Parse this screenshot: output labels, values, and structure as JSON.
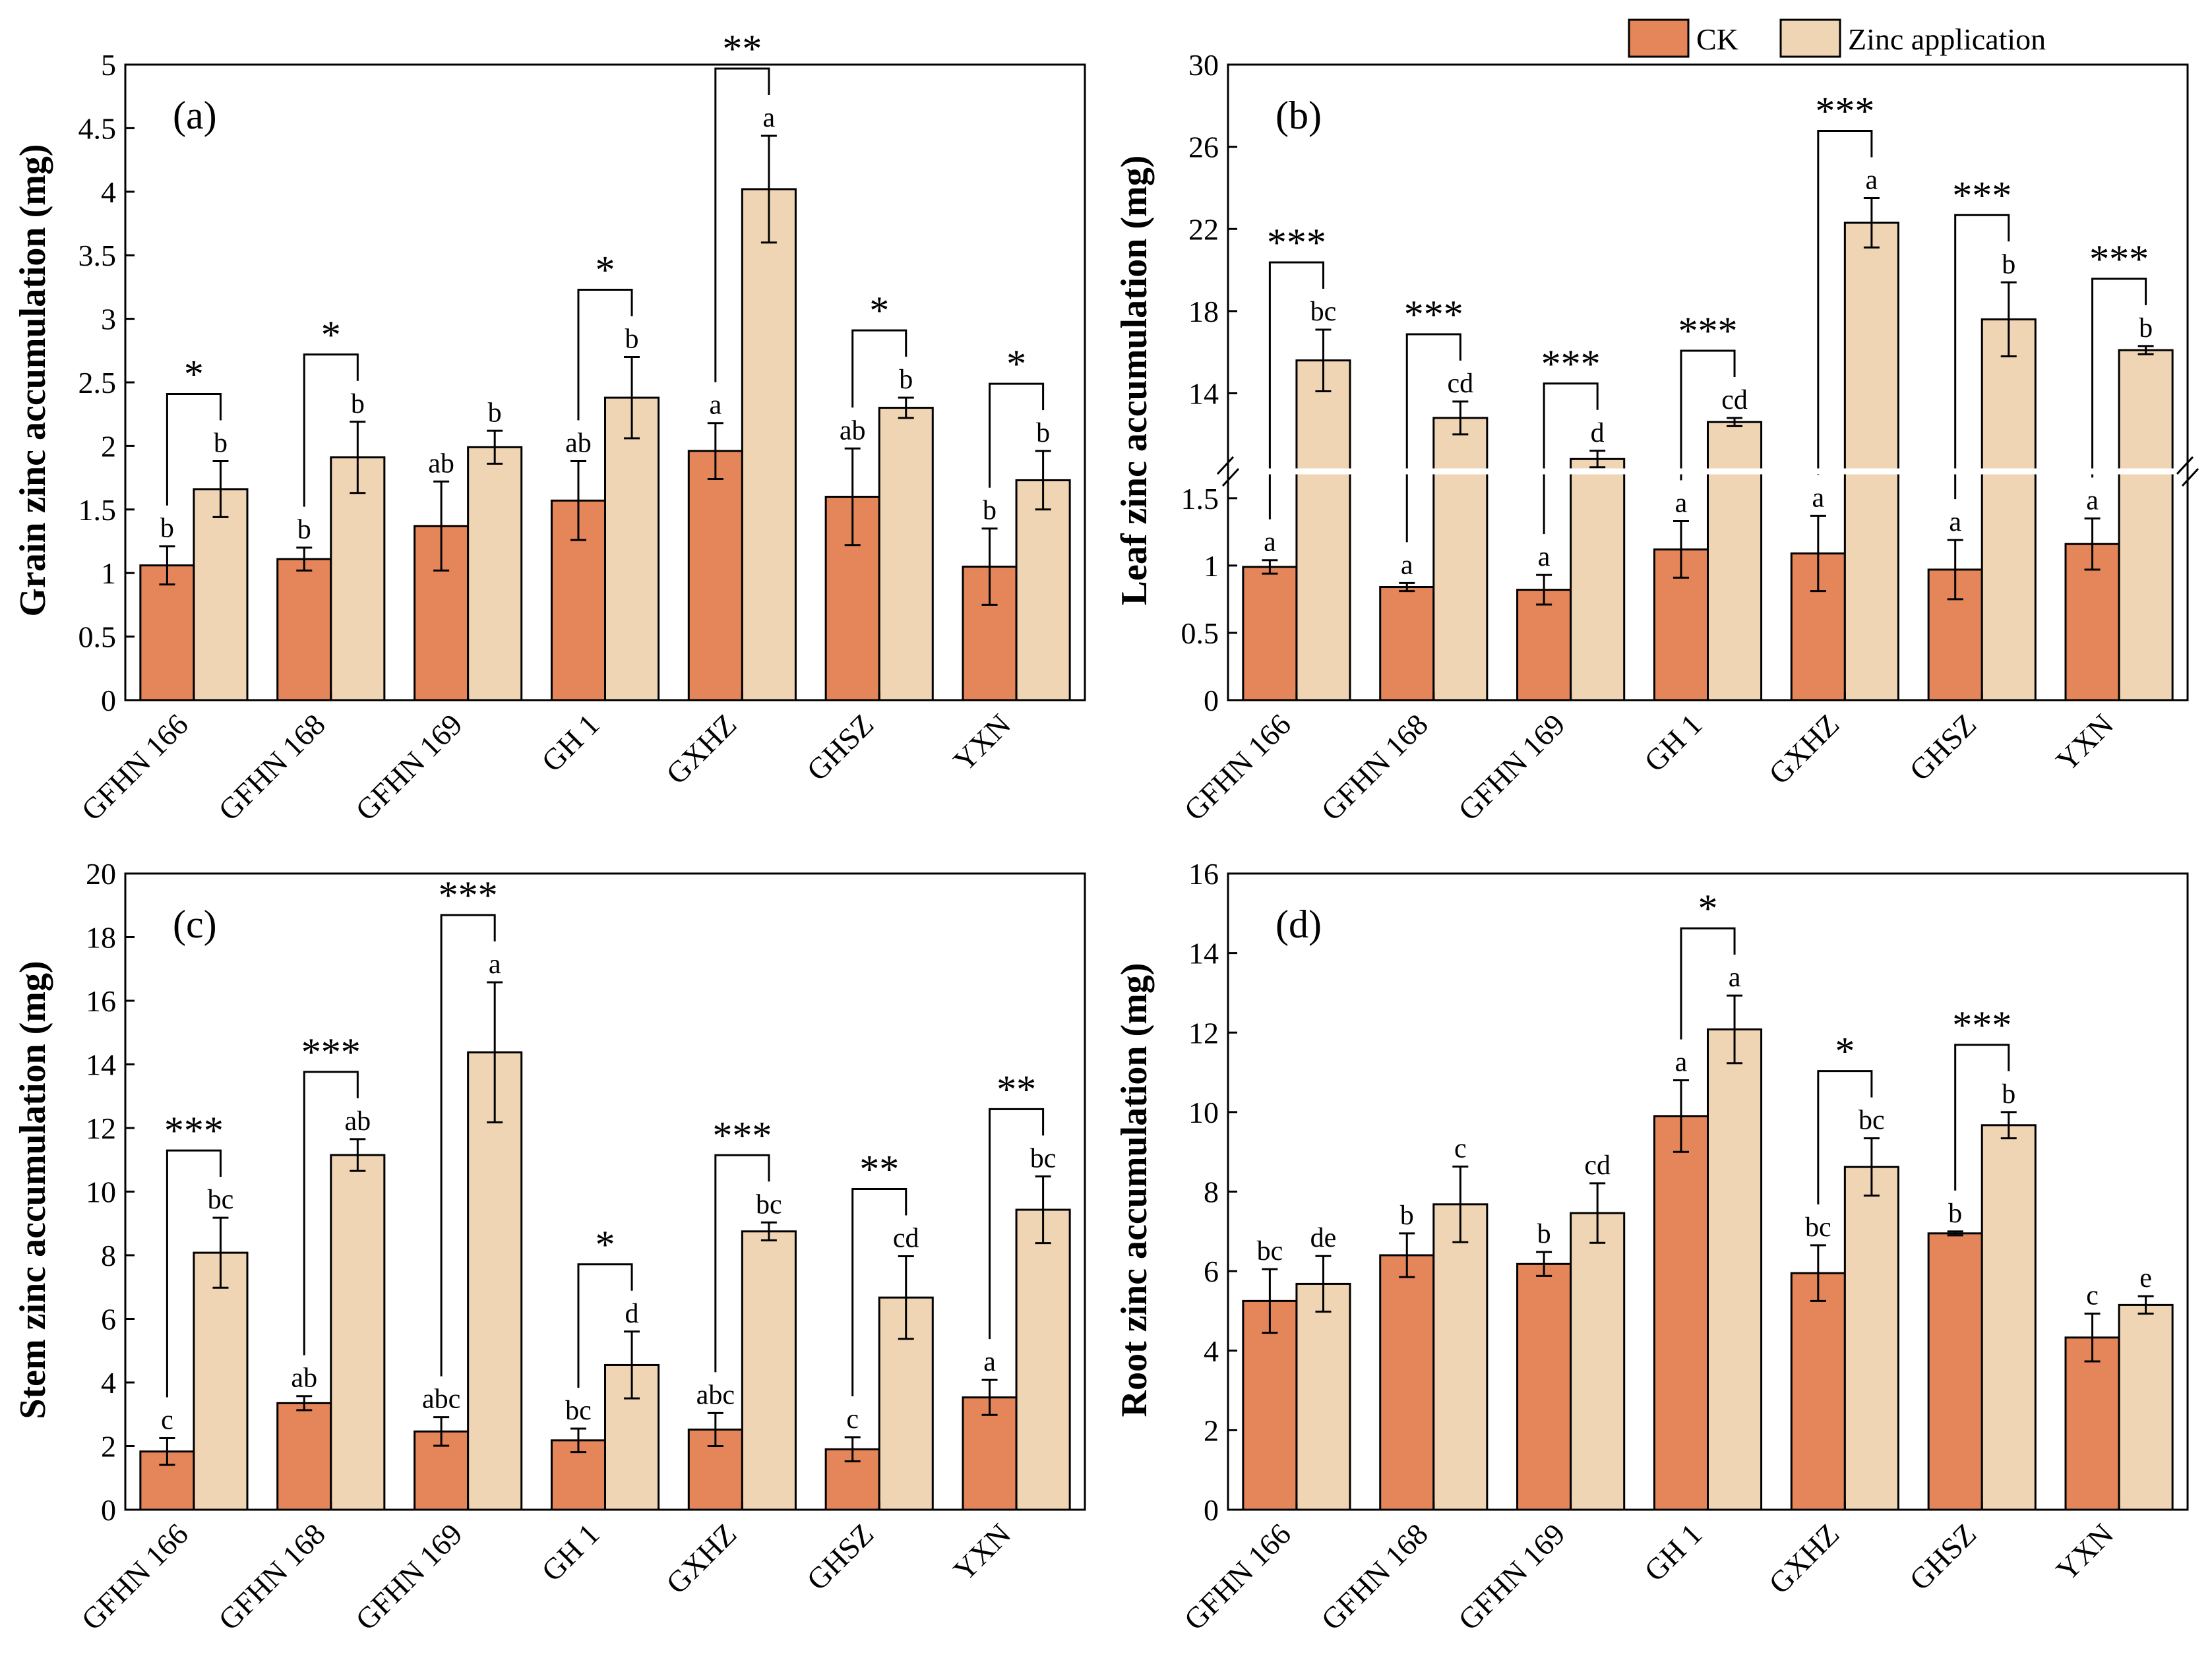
{
  "legend": {
    "ck_label": "CK",
    "zinc_label": "Zinc application",
    "ck_color": "#E4855A",
    "zinc_color": "#F0D5B5"
  },
  "chart_data": [
    {
      "type": "bar",
      "panel_label": "(a)",
      "ylabel": "Grain zinc accumulation (mg)",
      "ylim": [
        0,
        5
      ],
      "yticks": [
        0,
        0.5,
        1,
        1.5,
        2,
        2.5,
        3,
        3.5,
        4,
        4.5,
        5
      ],
      "ytick_labels": [
        "0",
        "0.5",
        "1",
        "1.5",
        "2",
        "2.5",
        "3",
        "3.5",
        "4",
        "4.5",
        "5"
      ],
      "categories": [
        "GFHN 166",
        "GFHN 168",
        "GFHN 169",
        "GH 1",
        "GXHZ",
        "GHSZ",
        "YXN"
      ],
      "series": [
        {
          "name": "CK",
          "values": [
            1.06,
            1.11,
            1.37,
            1.57,
            1.96,
            1.6,
            1.05
          ],
          "errors": [
            0.15,
            0.09,
            0.35,
            0.31,
            0.22,
            0.38,
            0.3
          ],
          "letters": [
            "b",
            "b",
            "ab",
            "ab",
            "a",
            "ab",
            "b"
          ]
        },
        {
          "name": "Zinc application",
          "values": [
            1.66,
            1.91,
            1.99,
            2.38,
            4.02,
            2.3,
            1.73
          ],
          "errors": [
            0.22,
            0.28,
            0.13,
            0.32,
            0.42,
            0.08,
            0.23
          ],
          "letters": [
            "b",
            "b",
            "b",
            "b",
            "a",
            "b",
            "b"
          ]
        }
      ],
      "significance": [
        "*",
        "*",
        "",
        "*",
        "**",
        "*",
        "*"
      ]
    },
    {
      "type": "bar",
      "panel_label": "(b)",
      "ylabel": "Leaf zinc accumulation (mg)",
      "broken_axis": true,
      "ylim_lower": [
        0,
        1.7
      ],
      "ylim_upper": [
        10.2,
        30
      ],
      "yticks": [
        0,
        0.5,
        1,
        1.5,
        14,
        18,
        22,
        26,
        30
      ],
      "ytick_labels": [
        "0",
        "0.5",
        "1",
        "1.5",
        "14",
        "18",
        "22",
        "26",
        "30"
      ],
      "categories": [
        "GFHN 166",
        "GFHN 168",
        "GFHN 169",
        "GH 1",
        "GXHZ",
        "GHSZ",
        "YXN"
      ],
      "series": [
        {
          "name": "CK",
          "values": [
            0.99,
            0.84,
            0.82,
            1.12,
            1.09,
            0.97,
            1.16
          ],
          "errors": [
            0.05,
            0.03,
            0.11,
            0.21,
            0.28,
            0.22,
            0.19
          ],
          "letters": [
            "a",
            "a",
            "a",
            "a",
            "a",
            "a",
            "a"
          ]
        },
        {
          "name": "Zinc application",
          "values": [
            15.6,
            12.8,
            10.8,
            12.6,
            22.3,
            17.6,
            16.1
          ],
          "errors": [
            1.5,
            0.8,
            0.4,
            0.2,
            1.2,
            1.8,
            0.2
          ],
          "letters": [
            "bc",
            "cd",
            "d",
            "cd",
            "a",
            "b",
            "b"
          ]
        }
      ],
      "significance": [
        "***",
        "***",
        "***",
        "***",
        "***",
        "***",
        "***"
      ]
    },
    {
      "type": "bar",
      "panel_label": "(c)",
      "ylabel": "Stem zinc accumulation (mg)",
      "ylim": [
        0,
        20
      ],
      "yticks": [
        0,
        2,
        4,
        6,
        8,
        10,
        12,
        14,
        16,
        18,
        20
      ],
      "ytick_labels": [
        "0",
        "2",
        "4",
        "6",
        "8",
        "10",
        "12",
        "14",
        "16",
        "18",
        "20"
      ],
      "categories": [
        "GFHN 166",
        "GFHN 168",
        "GFHN 169",
        "GH 1",
        "GXHZ",
        "GHSZ",
        "YXN"
      ],
      "series": [
        {
          "name": "CK",
          "values": [
            1.83,
            3.35,
            2.46,
            2.18,
            2.52,
            1.9,
            3.53
          ],
          "errors": [
            0.42,
            0.22,
            0.45,
            0.37,
            0.52,
            0.38,
            0.55
          ],
          "letters": [
            "c",
            "ab",
            "abc",
            "bc",
            "abc",
            "c",
            "a"
          ]
        },
        {
          "name": "Zinc application",
          "values": [
            8.08,
            11.15,
            14.38,
            4.55,
            8.75,
            6.67,
            9.43
          ],
          "errors": [
            1.1,
            0.5,
            2.2,
            1.05,
            0.28,
            1.3,
            1.05
          ],
          "letters": [
            "bc",
            "ab",
            "a",
            "d",
            "bc",
            "cd",
            "bc"
          ]
        }
      ],
      "significance": [
        "***",
        "***",
        "***",
        "*",
        "***",
        "**",
        "**"
      ]
    },
    {
      "type": "bar",
      "panel_label": "(d)",
      "ylabel": "Root zinc accumulation (mg)",
      "ylim": [
        0,
        16
      ],
      "yticks": [
        0,
        2,
        4,
        6,
        8,
        10,
        12,
        14,
        16
      ],
      "ytick_labels": [
        "0",
        "2",
        "4",
        "6",
        "8",
        "10",
        "12",
        "14",
        "16"
      ],
      "categories": [
        "GFHN 166",
        "GFHN 168",
        "GFHN 169",
        "GH 1",
        "GXHZ",
        "GHSZ",
        "YXN"
      ],
      "series": [
        {
          "name": "CK",
          "values": [
            5.25,
            6.4,
            6.18,
            9.9,
            5.95,
            6.95,
            4.33
          ],
          "errors": [
            0.8,
            0.55,
            0.3,
            0.9,
            0.7,
            0.05,
            0.6
          ],
          "letters": [
            "bc",
            "b",
            "b",
            "a",
            "bc",
            "b",
            "c"
          ]
        },
        {
          "name": "Zinc application",
          "values": [
            5.68,
            7.68,
            7.46,
            12.08,
            8.62,
            9.67,
            5.15
          ],
          "errors": [
            0.7,
            0.95,
            0.75,
            0.85,
            0.72,
            0.33,
            0.22
          ],
          "letters": [
            "de",
            "c",
            "cd",
            "a",
            "bc",
            "b",
            "e"
          ]
        }
      ],
      "significance": [
        "",
        "",
        "",
        "*",
        "*",
        "***",
        ""
      ]
    }
  ]
}
